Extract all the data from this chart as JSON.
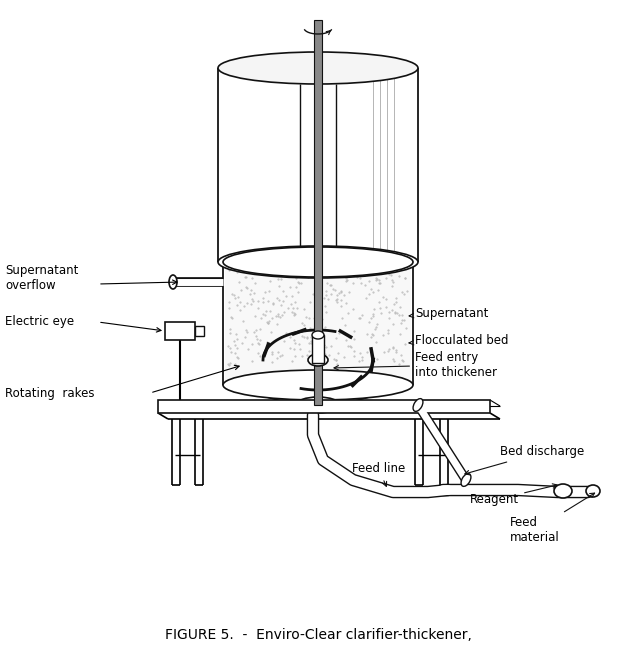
{
  "figure_caption": "FIGURE 5.  -  Enviro-Clear clarifier-thickener,",
  "bg_color": "#ffffff",
  "line_color": "#111111",
  "labels": {
    "supernatant_overflow": "Supernatant\noverflow",
    "electric_eye": "Electric eye",
    "supernatant": "Supernatant",
    "flocculated_bed": "Flocculated bed",
    "feed_entry": "Feed entry\ninto thickener",
    "rotating_rakes": "Rotating  rakes",
    "bed_discharge": "Bed discharge",
    "feed_line": "Feed line",
    "reagent": "Reagent",
    "feed_material": "Feed\nmaterial"
  },
  "figsize": [
    6.37,
    6.52
  ],
  "dpi": 100
}
